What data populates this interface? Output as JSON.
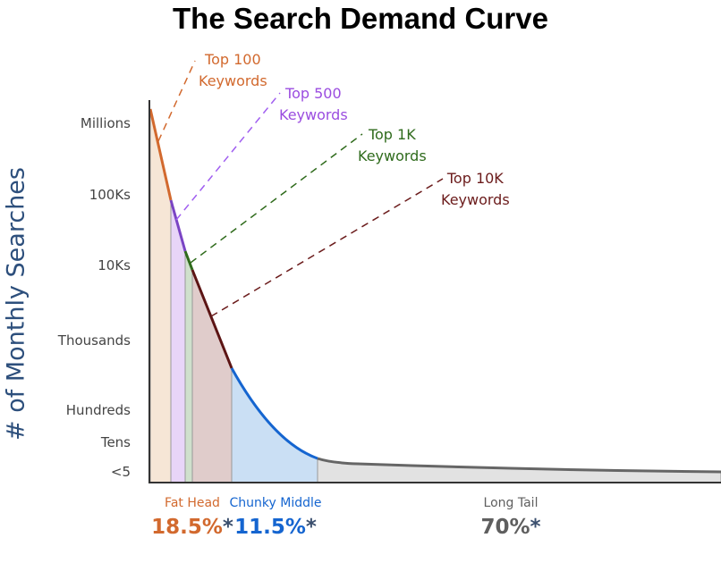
{
  "title": "The Search Demand Curve",
  "y_axis_title": "# of Monthly Searches",
  "y_ticks": [
    "Millions",
    "100Ks",
    "10Ks",
    "Thousands",
    "Hundreds",
    "Tens",
    "<5"
  ],
  "callouts": [
    {
      "line1": "Top 100",
      "line2": "Keywords",
      "color": "#d2692e"
    },
    {
      "line1": "Top 500",
      "line2": "Keywords",
      "color": "#9b4de0"
    },
    {
      "line1": "Top 1K",
      "line2": "Keywords",
      "color": "#2f6b1c"
    },
    {
      "line1": "Top 10K",
      "line2": "Keywords",
      "color": "#6b1b1b"
    }
  ],
  "segments": [
    {
      "label": "Fat Head",
      "percent": "18.5%",
      "color": "#d2692e"
    },
    {
      "label": "Chunky Middle",
      "percent": "11.5%",
      "color": "#1565d0"
    },
    {
      "label": "Long Tail",
      "percent": "70%",
      "color": "#5f5f5f"
    }
  ],
  "asterisk": "*"
}
